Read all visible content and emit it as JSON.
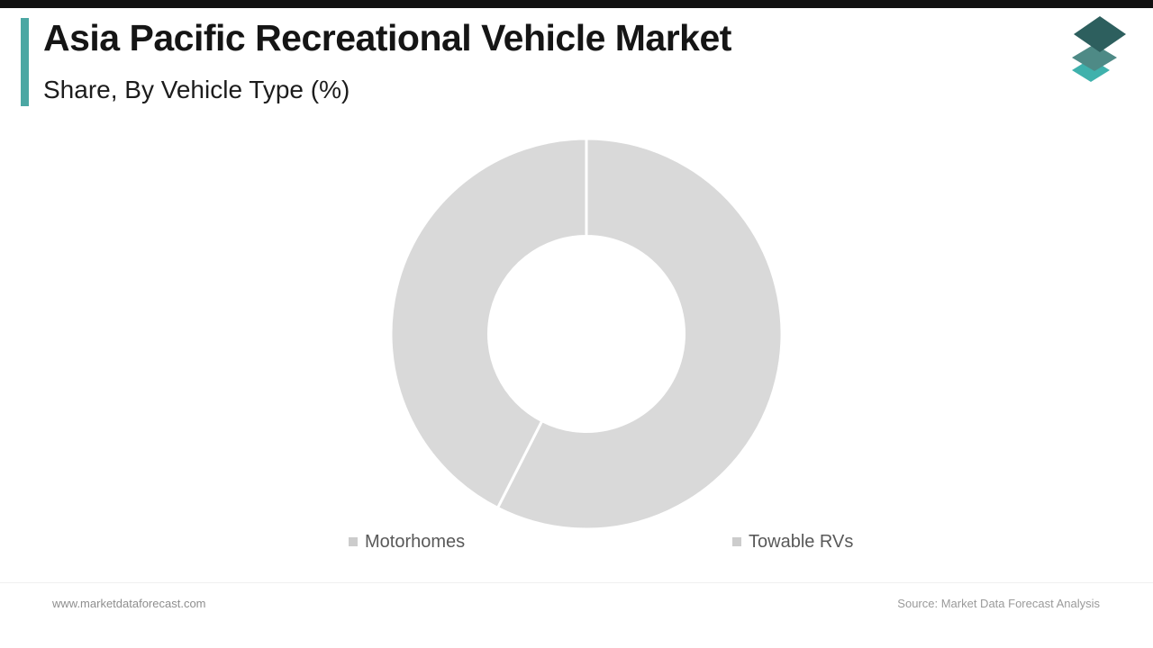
{
  "page": {
    "top_bar_color": "#111111",
    "background_color": "#ffffff",
    "accent_color": "#4BA7A3"
  },
  "header": {
    "title_line1": "Asia Pacific Recreational Vehicle Market",
    "title_line2": "Share, By Vehicle Type (%)",
    "logo": {
      "name": "market-data-forecast-layers-logo",
      "layer_colors": [
        "#3FB1AC",
        "#4E8A86",
        "#2D5F5E"
      ]
    }
  },
  "chart_data": {
    "type": "pie",
    "donut": true,
    "title": "Asia Pacific Recreational Vehicle Market Share, By Vehicle Type (%)",
    "start_angle_deg": 0,
    "inner_radius_ratio": 0.5,
    "slice_gap_color": "#ffffff",
    "legend_position": "bottom",
    "legend_marker_color": "#cccccc",
    "data_labels_shown": false,
    "series": [
      {
        "name": "Motorhomes",
        "value": 57.5,
        "color": "#d9d9d9"
      },
      {
        "name": "Towable RVs",
        "value": 42.5,
        "color": "#d9d9d9"
      }
    ]
  },
  "footer": {
    "website": "www.marketdataforecast.com",
    "source": "Source: Market Data Forecast Analysis"
  }
}
